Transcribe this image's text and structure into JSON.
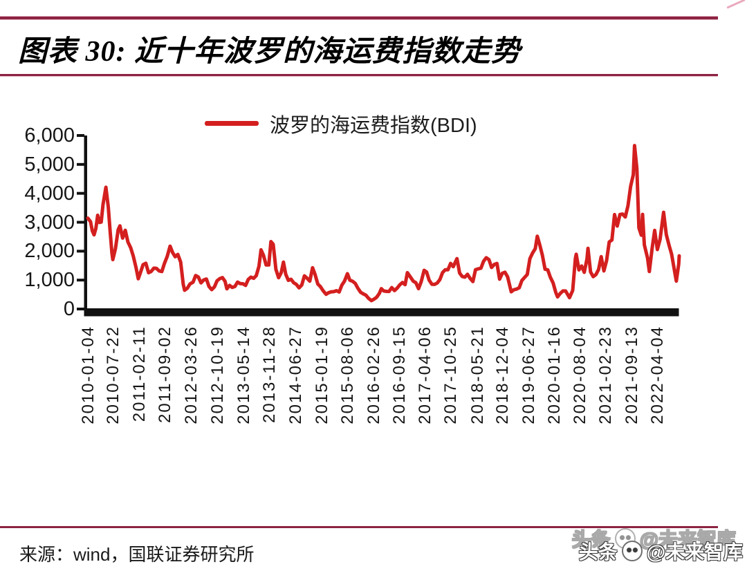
{
  "page": {
    "background": "#ffffff",
    "rule_color": "#8c2342"
  },
  "footer": {
    "source": "来源：wind，国联证券研究所"
  },
  "watermark": {
    "left": "头条",
    "right": "@未来智库",
    "logo": "panda-circle"
  },
  "chart_data": {
    "type": "line",
    "title": "图表 30: 近十年波罗的海运费指数走势",
    "xlabel": "",
    "ylabel": "",
    "ylim": [
      0,
      6000
    ],
    "ytick_values": [
      6000,
      5000,
      4000,
      3000,
      2000,
      1000,
      0
    ],
    "ytick_labels": [
      "6,000",
      "5,000",
      "4,000",
      "3,000",
      "2,000",
      "1,000",
      "0"
    ],
    "xtick_labels": [
      "2010-01-04",
      "2010-07-22",
      "2011-02-11",
      "2011-09-02",
      "2012-03-26",
      "2012-10-19",
      "2013-05-14",
      "2013-11-28",
      "2014-06-27",
      "2015-01-19",
      "2015-08-06",
      "2016-02-26",
      "2016-09-15",
      "2017-04-06",
      "2017-10-25",
      "2018-05-21",
      "2018-12-04",
      "2019-06-27",
      "2020-01-16",
      "2020-08-04",
      "2021-02-23",
      "2021-09-13",
      "2022-04-04"
    ],
    "grid": false,
    "legend_position": "top-center",
    "line_color": "#d41f1f",
    "axis_color": "#111111",
    "series": [
      {
        "name": "波罗的海运费指数(BDI)",
        "points": [
          [
            "2010-01-04",
            3140
          ],
          [
            "2010-01-25",
            3020
          ],
          [
            "2010-02-08",
            2708
          ],
          [
            "2010-02-22",
            2566
          ],
          [
            "2010-03-08",
            2785
          ],
          [
            "2010-03-22",
            3242
          ],
          [
            "2010-04-05",
            2991
          ],
          [
            "2010-04-19",
            3008
          ],
          [
            "2010-05-03",
            3605
          ],
          [
            "2010-05-26",
            4209
          ],
          [
            "2010-06-14",
            3514
          ],
          [
            "2010-06-28",
            2694
          ],
          [
            "2010-07-12",
            1940
          ],
          [
            "2010-07-19",
            1709
          ],
          [
            "2010-08-09",
            2088
          ],
          [
            "2010-08-30",
            2738
          ],
          [
            "2010-09-13",
            2876
          ],
          [
            "2010-10-04",
            2452
          ],
          [
            "2010-10-25",
            2723
          ],
          [
            "2010-11-15",
            2313
          ],
          [
            "2010-12-06",
            2120
          ],
          [
            "2010-12-27",
            1828
          ],
          [
            "2011-01-17",
            1439
          ],
          [
            "2011-02-04",
            1045
          ],
          [
            "2011-02-21",
            1258
          ],
          [
            "2011-03-14",
            1535
          ],
          [
            "2011-04-04",
            1583
          ],
          [
            "2011-04-26",
            1254
          ],
          [
            "2011-05-16",
            1297
          ],
          [
            "2011-06-06",
            1413
          ],
          [
            "2011-06-27",
            1406
          ],
          [
            "2011-07-18",
            1318
          ],
          [
            "2011-08-08",
            1296
          ],
          [
            "2011-08-29",
            1579
          ],
          [
            "2011-09-19",
            1814
          ],
          [
            "2011-10-12",
            2173
          ],
          [
            "2011-11-01",
            1950
          ],
          [
            "2011-11-21",
            1807
          ],
          [
            "2011-12-12",
            1888
          ],
          [
            "2012-01-03",
            1624
          ],
          [
            "2012-01-23",
            862
          ],
          [
            "2012-02-03",
            647
          ],
          [
            "2012-02-24",
            718
          ],
          [
            "2012-03-16",
            866
          ],
          [
            "2012-04-09",
            928
          ],
          [
            "2012-04-30",
            1157
          ],
          [
            "2012-05-21",
            1105
          ],
          [
            "2012-06-11",
            904
          ],
          [
            "2012-07-02",
            1004
          ],
          [
            "2012-07-23",
            1037
          ],
          [
            "2012-08-13",
            776
          ],
          [
            "2012-09-03",
            669
          ],
          [
            "2012-09-24",
            766
          ],
          [
            "2012-10-15",
            975
          ],
          [
            "2012-11-05",
            1049
          ],
          [
            "2012-11-26",
            1086
          ],
          [
            "2012-12-17",
            957
          ],
          [
            "2012-12-31",
            699
          ],
          [
            "2013-01-21",
            817
          ],
          [
            "2013-02-11",
            745
          ],
          [
            "2013-03-04",
            779
          ],
          [
            "2013-03-25",
            933
          ],
          [
            "2013-04-15",
            877
          ],
          [
            "2013-05-06",
            873
          ],
          [
            "2013-05-27",
            815
          ],
          [
            "2013-06-17",
            1021
          ],
          [
            "2013-07-08",
            1103
          ],
          [
            "2013-07-29",
            1062
          ],
          [
            "2013-08-19",
            1155
          ],
          [
            "2013-09-09",
            1478
          ],
          [
            "2013-09-25",
            2046
          ],
          [
            "2013-10-15",
            1852
          ],
          [
            "2013-11-04",
            1525
          ],
          [
            "2013-11-25",
            1523
          ],
          [
            "2013-12-12",
            2330
          ],
          [
            "2013-12-30",
            2237
          ],
          [
            "2014-01-20",
            1370
          ],
          [
            "2014-02-10",
            1084
          ],
          [
            "2014-03-03",
            1258
          ],
          [
            "2014-03-20",
            1621
          ],
          [
            "2014-04-07",
            1205
          ],
          [
            "2014-04-28",
            989
          ],
          [
            "2014-05-19",
            1027
          ],
          [
            "2014-06-09",
            906
          ],
          [
            "2014-06-30",
            850
          ],
          [
            "2014-07-21",
            732
          ],
          [
            "2014-08-11",
            830
          ],
          [
            "2014-09-01",
            1147
          ],
          [
            "2014-09-22",
            1063
          ],
          [
            "2014-10-13",
            963
          ],
          [
            "2014-11-04",
            1428
          ],
          [
            "2014-11-24",
            1187
          ],
          [
            "2014-12-15",
            863
          ],
          [
            "2015-01-05",
            771
          ],
          [
            "2015-01-26",
            632
          ],
          [
            "2015-02-18",
            509
          ],
          [
            "2015-03-09",
            562
          ],
          [
            "2015-03-30",
            596
          ],
          [
            "2015-04-20",
            601
          ],
          [
            "2015-05-11",
            634
          ],
          [
            "2015-06-01",
            589
          ],
          [
            "2015-06-22",
            824
          ],
          [
            "2015-07-13",
            965
          ],
          [
            "2015-08-05",
            1222
          ],
          [
            "2015-08-24",
            994
          ],
          [
            "2015-09-14",
            960
          ],
          [
            "2015-10-05",
            888
          ],
          [
            "2015-10-26",
            720
          ],
          [
            "2015-11-16",
            582
          ],
          [
            "2015-12-07",
            524
          ],
          [
            "2015-12-28",
            478
          ],
          [
            "2016-01-18",
            369
          ],
          [
            "2016-02-10",
            290
          ],
          [
            "2016-03-01",
            343
          ],
          [
            "2016-03-21",
            404
          ],
          [
            "2016-04-11",
            539
          ],
          [
            "2016-04-27",
            703
          ],
          [
            "2016-05-16",
            623
          ],
          [
            "2016-06-06",
            610
          ],
          [
            "2016-06-27",
            608
          ],
          [
            "2016-07-18",
            741
          ],
          [
            "2016-08-08",
            637
          ],
          [
            "2016-08-29",
            720
          ],
          [
            "2016-09-19",
            837
          ],
          [
            "2016-10-10",
            915
          ],
          [
            "2016-10-31",
            842
          ],
          [
            "2016-11-18",
            1257
          ],
          [
            "2016-12-12",
            1101
          ],
          [
            "2017-01-03",
            961
          ],
          [
            "2017-01-23",
            910
          ],
          [
            "2017-02-13",
            702
          ],
          [
            "2017-03-06",
            939
          ],
          [
            "2017-03-29",
            1338
          ],
          [
            "2017-04-17",
            1282
          ],
          [
            "2017-05-08",
            994
          ],
          [
            "2017-05-29",
            855
          ],
          [
            "2017-06-19",
            851
          ],
          [
            "2017-07-10",
            900
          ],
          [
            "2017-07-31",
            1018
          ],
          [
            "2017-08-21",
            1261
          ],
          [
            "2017-09-11",
            1355
          ],
          [
            "2017-10-02",
            1356
          ],
          [
            "2017-10-23",
            1578
          ],
          [
            "2017-11-13",
            1464
          ],
          [
            "2017-12-12",
            1743
          ],
          [
            "2018-01-02",
            1242
          ],
          [
            "2018-01-22",
            1125
          ],
          [
            "2018-02-12",
            1101
          ],
          [
            "2018-03-05",
            1199
          ],
          [
            "2018-03-26",
            1055
          ],
          [
            "2018-04-16",
            948
          ],
          [
            "2018-05-07",
            1361
          ],
          [
            "2018-05-28",
            1388
          ],
          [
            "2018-06-18",
            1410
          ],
          [
            "2018-07-09",
            1650
          ],
          [
            "2018-07-30",
            1774
          ],
          [
            "2018-08-20",
            1710
          ],
          [
            "2018-09-10",
            1436
          ],
          [
            "2018-10-01",
            1540
          ],
          [
            "2018-10-22",
            1576
          ],
          [
            "2018-11-12",
            1031
          ],
          [
            "2018-12-03",
            1237
          ],
          [
            "2018-12-24",
            1271
          ],
          [
            "2019-01-14",
            1112
          ],
          [
            "2019-02-11",
            595
          ],
          [
            "2019-03-04",
            665
          ],
          [
            "2019-03-25",
            689
          ],
          [
            "2019-04-15",
            735
          ],
          [
            "2019-05-06",
            985
          ],
          [
            "2019-05-27",
            1090
          ],
          [
            "2019-06-17",
            1194
          ],
          [
            "2019-07-08",
            1740
          ],
          [
            "2019-07-29",
            1937
          ],
          [
            "2019-08-19",
            2088
          ],
          [
            "2019-09-04",
            2518
          ],
          [
            "2019-09-23",
            2225
          ],
          [
            "2019-10-14",
            1855
          ],
          [
            "2019-11-04",
            1378
          ],
          [
            "2019-11-25",
            1355
          ],
          [
            "2019-12-16",
            1090
          ],
          [
            "2020-01-06",
            907
          ],
          [
            "2020-01-27",
            576
          ],
          [
            "2020-02-10",
            418
          ],
          [
            "2020-03-02",
            535
          ],
          [
            "2020-03-23",
            625
          ],
          [
            "2020-04-13",
            624
          ],
          [
            "2020-05-14",
            393
          ],
          [
            "2020-06-08",
            642
          ],
          [
            "2020-06-29",
            1749
          ],
          [
            "2020-07-06",
            1894
          ],
          [
            "2020-07-27",
            1350
          ],
          [
            "2020-08-17",
            1488
          ],
          [
            "2020-09-07",
            1269
          ],
          [
            "2020-09-28",
            1725
          ],
          [
            "2020-10-06",
            2097
          ],
          [
            "2020-10-26",
            1283
          ],
          [
            "2020-11-16",
            1119
          ],
          [
            "2020-12-07",
            1188
          ],
          [
            "2020-12-28",
            1366
          ],
          [
            "2021-01-18",
            1810
          ],
          [
            "2021-02-08",
            1318
          ],
          [
            "2021-03-01",
            1675
          ],
          [
            "2021-03-22",
            2319
          ],
          [
            "2021-04-12",
            2385
          ],
          [
            "2021-05-03",
            3266
          ],
          [
            "2021-05-24",
            2869
          ],
          [
            "2021-06-14",
            3267
          ],
          [
            "2021-07-05",
            3285
          ],
          [
            "2021-07-26",
            3181
          ],
          [
            "2021-08-16",
            3566
          ],
          [
            "2021-09-06",
            4235
          ],
          [
            "2021-09-27",
            4644
          ],
          [
            "2021-10-07",
            5650
          ],
          [
            "2021-10-25",
            4854
          ],
          [
            "2021-11-10",
            2807
          ],
          [
            "2021-11-29",
            2552
          ],
          [
            "2021-12-09",
            3272
          ],
          [
            "2021-12-23",
            2217
          ],
          [
            "2022-01-17",
            1764
          ],
          [
            "2022-01-31",
            1296
          ],
          [
            "2022-02-21",
            2076
          ],
          [
            "2022-03-14",
            2718
          ],
          [
            "2022-04-04",
            2055
          ],
          [
            "2022-04-25",
            2404
          ],
          [
            "2022-05-23",
            3344
          ],
          [
            "2022-06-13",
            2578
          ],
          [
            "2022-07-04",
            2214
          ],
          [
            "2022-07-25",
            1895
          ],
          [
            "2022-08-15",
            1360
          ],
          [
            "2022-08-31",
            965
          ],
          [
            "2022-09-19",
            1553
          ],
          [
            "2022-10-10",
            1838
          ]
        ]
      }
    ]
  }
}
